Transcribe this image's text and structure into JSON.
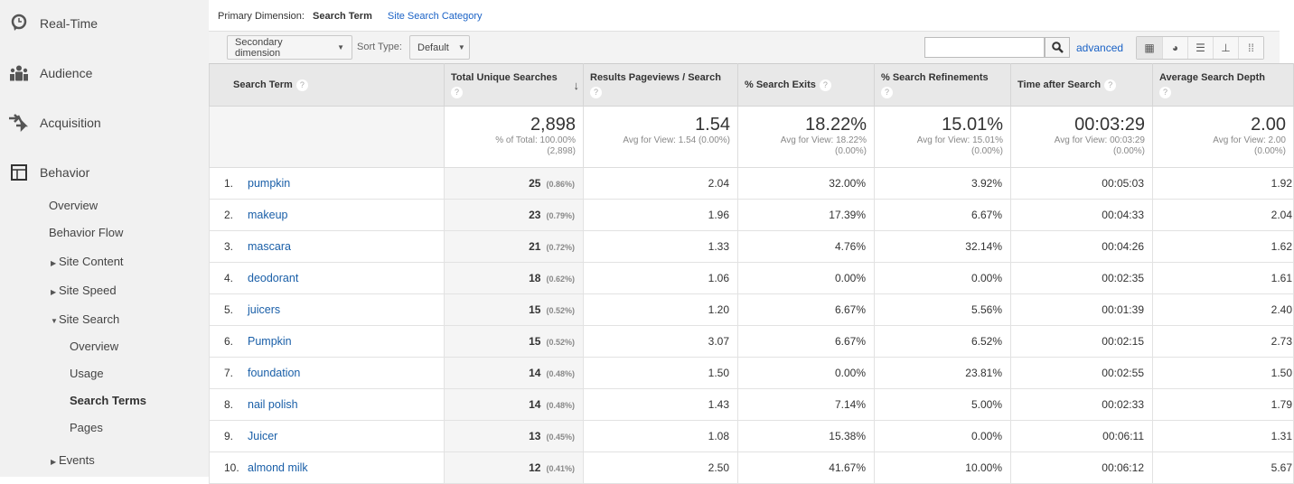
{
  "sidebar": {
    "top": [
      {
        "label": "Real-Time",
        "icon": "clock-bubble-icon"
      },
      {
        "label": "Audience",
        "icon": "people-icon"
      },
      {
        "label": "Acquisition",
        "icon": "arrows-icon"
      },
      {
        "label": "Behavior",
        "icon": "layout-icon"
      }
    ],
    "behavior_items": [
      "Overview",
      "Behavior Flow",
      "Site Content",
      "Site Speed",
      "Site Search",
      "Events"
    ],
    "site_search_items": [
      "Overview",
      "Usage",
      "Search Terms",
      "Pages"
    ],
    "active": "Search Terms"
  },
  "primary_dimension": {
    "label": "Primary Dimension:",
    "selected": "Search Term",
    "other": "Site Search Category"
  },
  "toolbar": {
    "secondary_dimension": "Secondary dimension",
    "sort_type_label": "Sort Type:",
    "sort_type": "Default",
    "search_value": "",
    "advanced": "advanced",
    "views": [
      "table-view-icon",
      "pie-view-icon",
      "bar-view-icon",
      "comparison-view-icon",
      "pivot-view-icon"
    ]
  },
  "columns": [
    "Search Term",
    "Total Unique Searches",
    "Results Pageviews / Search",
    "% Search Exits",
    "% Search Refinements",
    "Time after Search",
    "Average Search Depth"
  ],
  "totals": [
    {
      "value": "2,898",
      "sub1": "% of Total: 100.00%",
      "sub2": "(2,898)"
    },
    {
      "value": "1.54",
      "sub1": "Avg for View: 1.54 (0.00%)",
      "sub2": ""
    },
    {
      "value": "18.22%",
      "sub1": "Avg for View: 18.22%",
      "sub2": "(0.00%)"
    },
    {
      "value": "15.01%",
      "sub1": "Avg for View: 15.01%",
      "sub2": "(0.00%)"
    },
    {
      "value": "00:03:29",
      "sub1": "Avg for View: 00:03:29",
      "sub2": "(0.00%)"
    },
    {
      "value": "2.00",
      "sub1": "Avg for View: 2.00",
      "sub2": "(0.00%)"
    }
  ],
  "rows": [
    {
      "n": "1.",
      "term": "pumpkin",
      "u": "25",
      "p": "(0.86%)",
      "rp": "2.04",
      "ex": "32.00%",
      "rf": "3.92%",
      "t": "00:05:03",
      "d": "1.92"
    },
    {
      "n": "2.",
      "term": "makeup",
      "u": "23",
      "p": "(0.79%)",
      "rp": "1.96",
      "ex": "17.39%",
      "rf": "6.67%",
      "t": "00:04:33",
      "d": "2.04"
    },
    {
      "n": "3.",
      "term": "mascara",
      "u": "21",
      "p": "(0.72%)",
      "rp": "1.33",
      "ex": "4.76%",
      "rf": "32.14%",
      "t": "00:04:26",
      "d": "1.62"
    },
    {
      "n": "4.",
      "term": "deodorant",
      "u": "18",
      "p": "(0.62%)",
      "rp": "1.06",
      "ex": "0.00%",
      "rf": "0.00%",
      "t": "00:02:35",
      "d": "1.61"
    },
    {
      "n": "5.",
      "term": "juicers",
      "u": "15",
      "p": "(0.52%)",
      "rp": "1.20",
      "ex": "6.67%",
      "rf": "5.56%",
      "t": "00:01:39",
      "d": "2.40"
    },
    {
      "n": "6.",
      "term": "Pumpkin",
      "u": "15",
      "p": "(0.52%)",
      "rp": "3.07",
      "ex": "6.67%",
      "rf": "6.52%",
      "t": "00:02:15",
      "d": "2.73"
    },
    {
      "n": "7.",
      "term": "foundation",
      "u": "14",
      "p": "(0.48%)",
      "rp": "1.50",
      "ex": "0.00%",
      "rf": "23.81%",
      "t": "00:02:55",
      "d": "1.50"
    },
    {
      "n": "8.",
      "term": "nail polish",
      "u": "14",
      "p": "(0.48%)",
      "rp": "1.43",
      "ex": "7.14%",
      "rf": "5.00%",
      "t": "00:02:33",
      "d": "1.79"
    },
    {
      "n": "9.",
      "term": "Juicer",
      "u": "13",
      "p": "(0.45%)",
      "rp": "1.08",
      "ex": "15.38%",
      "rf": "0.00%",
      "t": "00:06:11",
      "d": "1.31"
    },
    {
      "n": "10.",
      "term": "almond milk",
      "u": "12",
      "p": "(0.41%)",
      "rp": "2.50",
      "ex": "41.67%",
      "rf": "10.00%",
      "t": "00:06:12",
      "d": "5.67"
    }
  ]
}
